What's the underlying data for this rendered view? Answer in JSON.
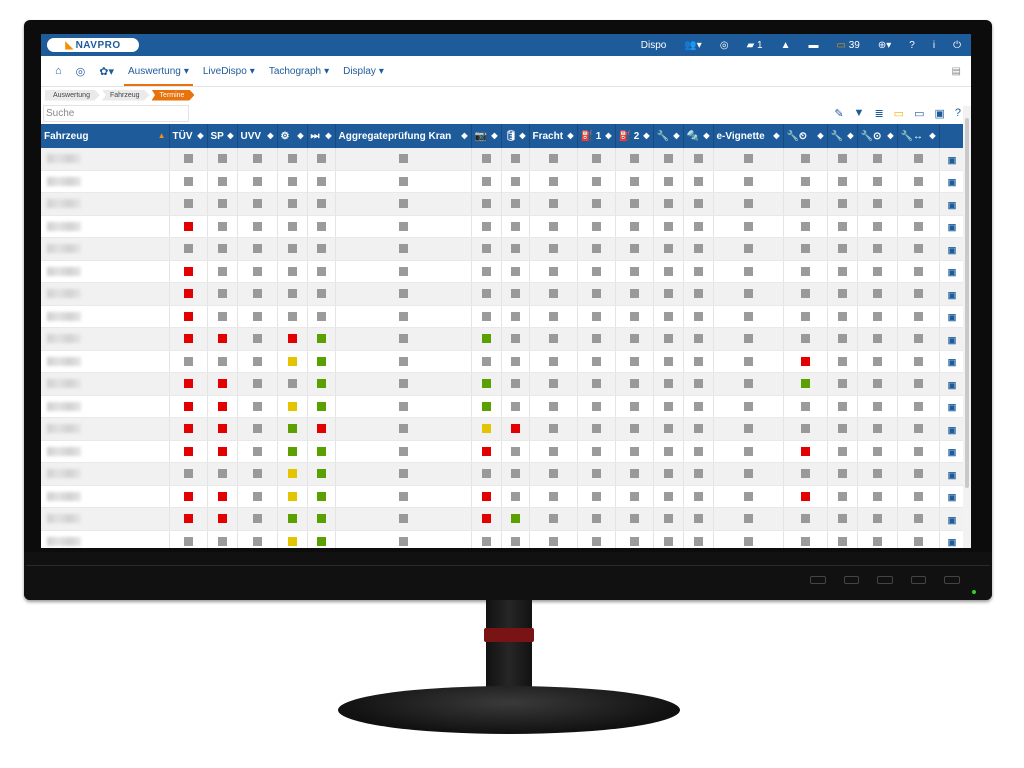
{
  "colors": {
    "brand_blue": "#1e5b9a",
    "accent_orange": "#e8720c",
    "status_red": "#e20000",
    "status_green": "#5aa000",
    "status_yellow": "#e2c400",
    "status_grey": "#8a8a8a"
  },
  "topbar": {
    "logo_text": "NAVPRO",
    "dispo_label": "Dispo",
    "messages_count": "1",
    "alerts_count": "39",
    "icons": [
      "users-icon",
      "globe-icon",
      "chat-icon",
      "bell-icon",
      "message-icon",
      "alert-card-icon",
      "language-icon",
      "help-icon",
      "info-icon",
      "power-icon"
    ]
  },
  "menu": {
    "items": [
      {
        "label": "Auswertung",
        "active": true
      },
      {
        "label": "LiveDispo",
        "active": false
      },
      {
        "label": "Tachograph",
        "active": false
      },
      {
        "label": "Display",
        "active": false
      }
    ]
  },
  "breadcrumbs": [
    "Auswertung",
    "Fahrzeug",
    "Termine"
  ],
  "search": {
    "placeholder": "Suche"
  },
  "table": {
    "columns": [
      "Fahrzeug",
      "TÜV",
      "SP",
      "UVV",
      "⚙",
      "⏭",
      "Aggregateprüfung Kran",
      "📷",
      "🛢",
      "Fracht",
      "⛽ 1",
      "⛽ 2",
      "🔧",
      "🔩",
      "e-Vignette",
      "🔧⏲",
      "🔧",
      "🔧⊙",
      "🔧↔",
      ""
    ],
    "rows": [
      [
        "g",
        "g",
        "g",
        "g",
        "g",
        "g",
        "g",
        "g",
        "g",
        "g",
        "g",
        "g",
        "g",
        "g",
        "g",
        "g",
        "g",
        "g"
      ],
      [
        "g",
        "g",
        "g",
        "g",
        "g",
        "g",
        "g",
        "g",
        "g",
        "g",
        "g",
        "g",
        "g",
        "g",
        "g",
        "g",
        "g",
        "g"
      ],
      [
        "g",
        "g",
        "g",
        "g",
        "g",
        "g",
        "g",
        "g",
        "g",
        "g",
        "g",
        "g",
        "g",
        "g",
        "g",
        "g",
        "g",
        "g"
      ],
      [
        "r",
        "g",
        "g",
        "g",
        "g",
        "g",
        "g",
        "g",
        "g",
        "g",
        "g",
        "g",
        "g",
        "g",
        "g",
        "g",
        "g",
        "g"
      ],
      [
        "g",
        "g",
        "g",
        "g",
        "g",
        "g",
        "g",
        "g",
        "g",
        "g",
        "g",
        "g",
        "g",
        "g",
        "g",
        "g",
        "g",
        "g"
      ],
      [
        "r",
        "g",
        "g",
        "g",
        "g",
        "g",
        "g",
        "g",
        "g",
        "g",
        "g",
        "g",
        "g",
        "g",
        "g",
        "g",
        "g",
        "g"
      ],
      [
        "r",
        "g",
        "g",
        "g",
        "g",
        "g",
        "g",
        "g",
        "g",
        "g",
        "g",
        "g",
        "g",
        "g",
        "g",
        "g",
        "g",
        "g"
      ],
      [
        "r",
        "g",
        "g",
        "g",
        "g",
        "g",
        "g",
        "g",
        "g",
        "g",
        "g",
        "g",
        "g",
        "g",
        "g",
        "g",
        "g",
        "g"
      ],
      [
        "r",
        "r",
        "g",
        "r",
        "gr",
        "g",
        "gr",
        "g",
        "g",
        "g",
        "g",
        "g",
        "g",
        "g",
        "g",
        "g",
        "g",
        "g"
      ],
      [
        "g",
        "g",
        "g",
        "y",
        "gr",
        "g",
        "g",
        "g",
        "g",
        "g",
        "g",
        "g",
        "g",
        "g",
        "r",
        "g",
        "g",
        "g"
      ],
      [
        "r",
        "r",
        "g",
        "g",
        "gr",
        "g",
        "gr",
        "g",
        "g",
        "g",
        "g",
        "g",
        "g",
        "g",
        "gr",
        "g",
        "g",
        "g"
      ],
      [
        "r",
        "r",
        "g",
        "y",
        "gr",
        "g",
        "gr",
        "g",
        "g",
        "g",
        "g",
        "g",
        "g",
        "g",
        "g",
        "g",
        "g",
        "g"
      ],
      [
        "r",
        "r",
        "g",
        "gr",
        "r",
        "g",
        "y",
        "r",
        "g",
        "g",
        "g",
        "g",
        "g",
        "g",
        "g",
        "g",
        "g",
        "g"
      ],
      [
        "r",
        "r",
        "g",
        "gr",
        "gr",
        "g",
        "r",
        "g",
        "g",
        "g",
        "g",
        "g",
        "g",
        "g",
        "r",
        "g",
        "g",
        "g"
      ],
      [
        "g",
        "g",
        "g",
        "y",
        "gr",
        "g",
        "g",
        "g",
        "g",
        "g",
        "g",
        "g",
        "g",
        "g",
        "g",
        "g",
        "g",
        "g"
      ],
      [
        "r",
        "r",
        "g",
        "y",
        "gr",
        "g",
        "r",
        "g",
        "g",
        "g",
        "g",
        "g",
        "g",
        "g",
        "r",
        "g",
        "g",
        "g"
      ],
      [
        "r",
        "r",
        "g",
        "gr",
        "gr",
        "g",
        "r",
        "gr",
        "g",
        "g",
        "g",
        "g",
        "g",
        "g",
        "g",
        "g",
        "g",
        "g"
      ],
      [
        "g",
        "g",
        "g",
        "y",
        "gr",
        "g",
        "g",
        "g",
        "g",
        "g",
        "g",
        "g",
        "g",
        "g",
        "g",
        "g",
        "g",
        "g"
      ]
    ]
  }
}
